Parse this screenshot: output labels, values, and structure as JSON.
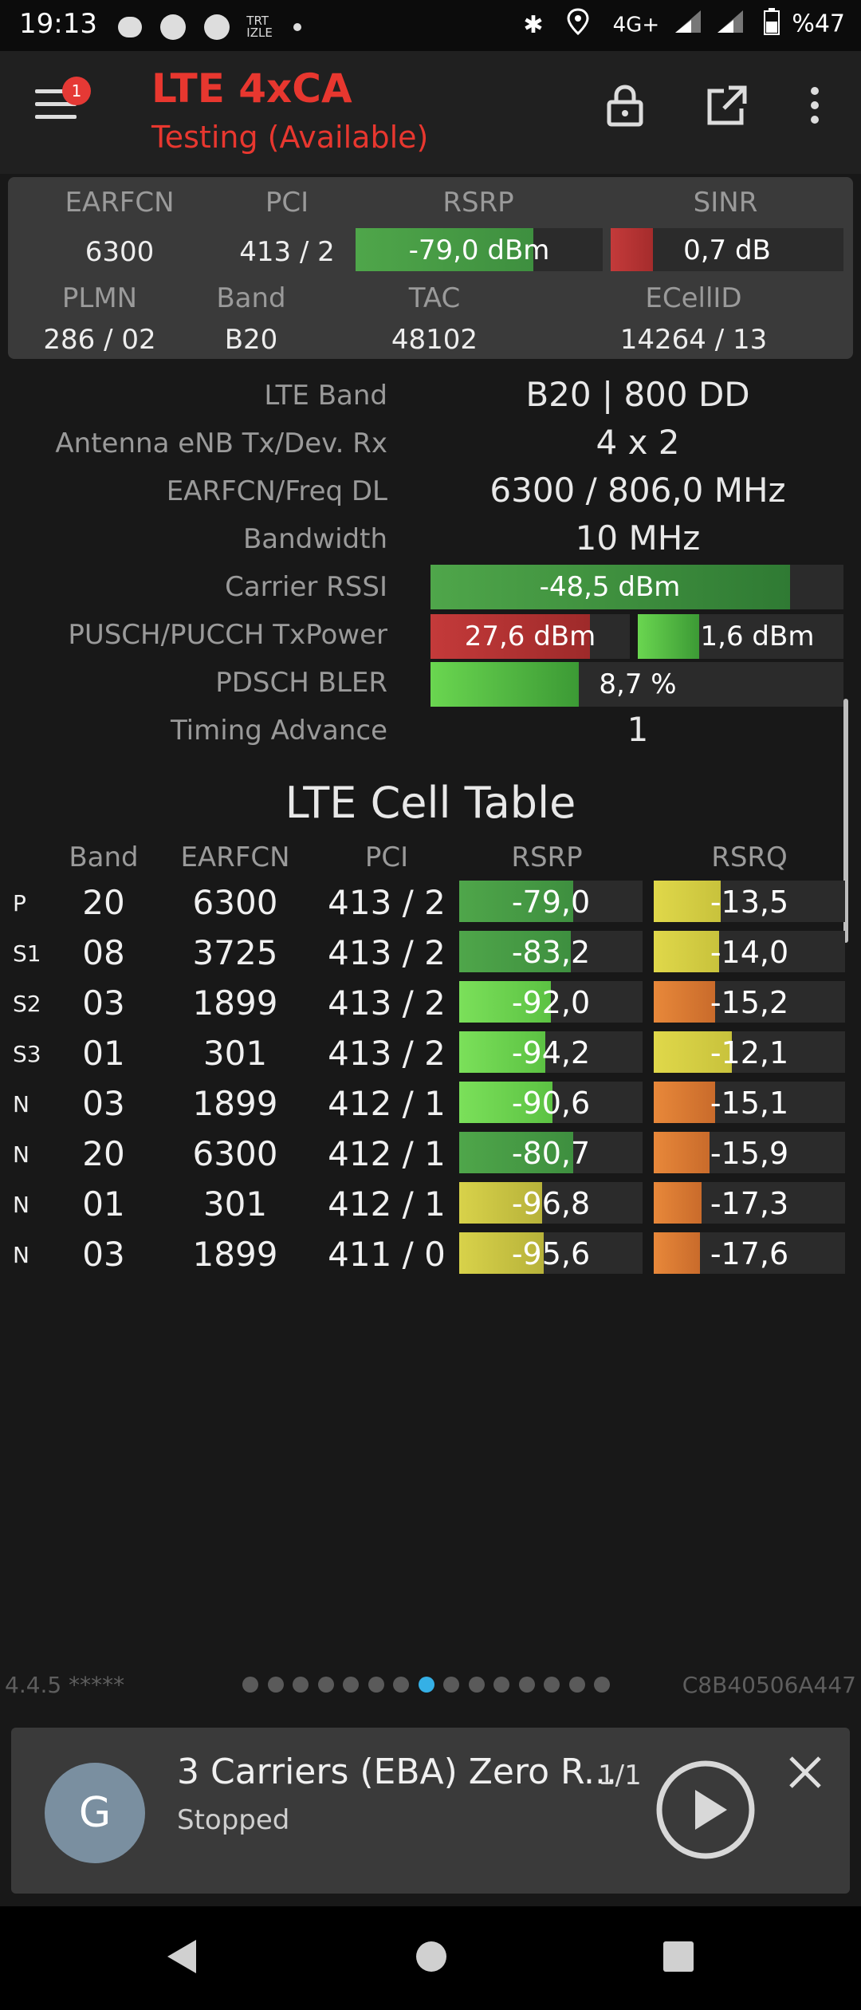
{
  "status": {
    "time": "19:13",
    "network": "4G+",
    "battery": "%47",
    "trt_icon": "TRT IZLE"
  },
  "app": {
    "title": "LTE 4xCA",
    "subtitle": "Testing (Available)",
    "notif_count": "1"
  },
  "summary": {
    "headers": {
      "earfcn": "EARFCN",
      "pci": "PCI",
      "rsrp": "RSRP",
      "sinr": "SINR",
      "plmn": "PLMN",
      "band": "Band",
      "tac": "TAC",
      "ecellid": "ECellID"
    },
    "earfcn": "6300",
    "pci": "413 / 2",
    "rsrp": "-79,0 dBm",
    "rsrp_fill": 0.72,
    "sinr": "0,7 dB",
    "sinr_fill": 0.18,
    "plmn": "286 / 02",
    "band": "B20",
    "tac": "48102",
    "ecellid": "14264 / 13"
  },
  "details": {
    "lte_band_label": "LTE Band",
    "lte_band": "B20 | 800 DD",
    "antenna_label": "Antenna eNB Tx/Dev. Rx",
    "antenna": "4 x 2",
    "freq_label": "EARFCN/Freq DL",
    "freq": "6300 / 806,0 MHz",
    "bw_label": "Bandwidth",
    "bw": "10 MHz",
    "rssi_label": "Carrier RSSI",
    "rssi": "-48,5 dBm",
    "rssi_fill": 0.87,
    "txpower_label": "PUSCH/PUCCH TxPower",
    "pusch": "27,6 dBm",
    "pusch_fill": 0.8,
    "pucch": "1,6 dBm",
    "pucch_fill": 0.3,
    "bler_label": "PDSCH BLER",
    "bler": "8,7 %",
    "bler_fill": 0.36,
    "ta_label": "Timing Advance",
    "ta": "1"
  },
  "table": {
    "title": "LTE Cell Table",
    "headers": {
      "band": "Band",
      "earfcn": "EARFCN",
      "pci": "PCI",
      "rsrp": "RSRP",
      "rsrq": "RSRQ"
    },
    "rows": [
      {
        "tag": "P",
        "band": "20",
        "earfcn": "6300",
        "pci": "413 / 2",
        "rsrp": "-79,0",
        "rsrq": "-13,5",
        "rsrp_fill": 0.62,
        "rsrq_fill": 0.35
      },
      {
        "tag": "S1",
        "band": "08",
        "earfcn": "3725",
        "pci": "413 / 2",
        "rsrp": "-83,2",
        "rsrq": "-14,0",
        "rsrp_fill": 0.61,
        "rsrq_fill": 0.34
      },
      {
        "tag": "S2",
        "band": "03",
        "earfcn": "1899",
        "pci": "413 / 2",
        "rsrp": "-92,0",
        "rsrq": "-15,2",
        "rsrp_fill": 0.5,
        "rsrq_fill": 0.32
      },
      {
        "tag": "S3",
        "band": "01",
        "earfcn": "301",
        "pci": "413 / 2",
        "rsrp": "-94,2",
        "rsrq": "-12,1",
        "rsrp_fill": 0.47,
        "rsrq_fill": 0.41
      },
      {
        "tag": "N",
        "band": "03",
        "earfcn": "1899",
        "pci": "412 / 1",
        "rsrp": "-90,6",
        "rsrq": "-15,1",
        "rsrp_fill": 0.51,
        "rsrq_fill": 0.32
      },
      {
        "tag": "N",
        "band": "20",
        "earfcn": "6300",
        "pci": "412 / 1",
        "rsrp": "-80,7",
        "rsrq": "-15,9",
        "rsrp_fill": 0.62,
        "rsrq_fill": 0.29
      },
      {
        "tag": "N",
        "band": "01",
        "earfcn": "301",
        "pci": "412 / 1",
        "rsrp": "-96,8",
        "rsrq": "-17,3",
        "rsrp_fill": 0.45,
        "rsrq_fill": 0.25
      },
      {
        "tag": "N",
        "band": "03",
        "earfcn": "1899",
        "pci": "411 / 0",
        "rsrp": "-95,6",
        "rsrq": "-17,6",
        "rsrp_fill": 0.46,
        "rsrq_fill": 0.24
      }
    ]
  },
  "footer": {
    "version": "4.4.5 *****",
    "session": "C8B40506A447",
    "page_count": 15,
    "active_page": 7
  },
  "media": {
    "avatar": "G",
    "title": "3 Carriers (EBA) Zero R...",
    "count": "1/1",
    "state": "Stopped"
  },
  "colors": {
    "accent": "#e8372f",
    "dot_active": "#35b0e6"
  }
}
